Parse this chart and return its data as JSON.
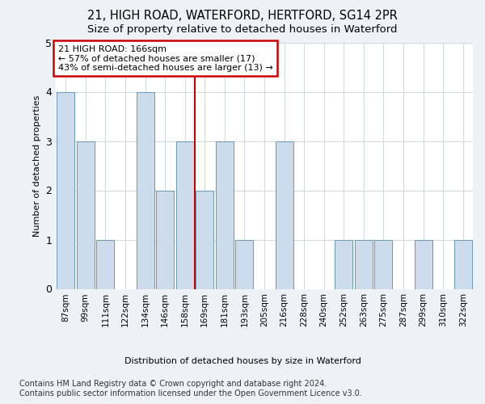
{
  "title": "21, HIGH ROAD, WATERFORD, HERTFORD, SG14 2PR",
  "subtitle": "Size of property relative to detached houses in Waterford",
  "xlabel": "Distribution of detached houses by size in Waterford",
  "ylabel": "Number of detached properties",
  "categories": [
    "87sqm",
    "99sqm",
    "111sqm",
    "122sqm",
    "134sqm",
    "146sqm",
    "158sqm",
    "169sqm",
    "181sqm",
    "193sqm",
    "205sqm",
    "216sqm",
    "228sqm",
    "240sqm",
    "252sqm",
    "263sqm",
    "275sqm",
    "287sqm",
    "299sqm",
    "310sqm",
    "322sqm"
  ],
  "values": [
    4,
    3,
    1,
    0,
    4,
    2,
    3,
    2,
    3,
    1,
    0,
    3,
    0,
    0,
    1,
    1,
    1,
    0,
    1,
    0,
    1
  ],
  "bar_color": "#ccdcec",
  "bar_edge_color": "#6699bb",
  "ref_line_index": 7,
  "annotation_line1": "21 HIGH ROAD: 166sqm",
  "annotation_line2": "← 57% of detached houses are smaller (17)",
  "annotation_line3": "43% of semi-detached houses are larger (13) →",
  "annotation_box_color": "#ffffff",
  "annotation_box_edgecolor": "#cc0000",
  "ref_line_color": "#cc0000",
  "ylim": [
    0,
    5
  ],
  "yticks": [
    0,
    1,
    2,
    3,
    4,
    5
  ],
  "footer1": "Contains HM Land Registry data © Crown copyright and database right 2024.",
  "footer2": "Contains public sector information licensed under the Open Government Licence v3.0.",
  "background_color": "#eef2f7",
  "plot_background_color": "#ffffff",
  "title_fontsize": 10.5,
  "subtitle_fontsize": 9.5,
  "axis_fontsize": 8,
  "tick_fontsize": 7.5,
  "ylabel_fontsize": 8,
  "footer_fontsize": 7,
  "annotation_fontsize": 8
}
